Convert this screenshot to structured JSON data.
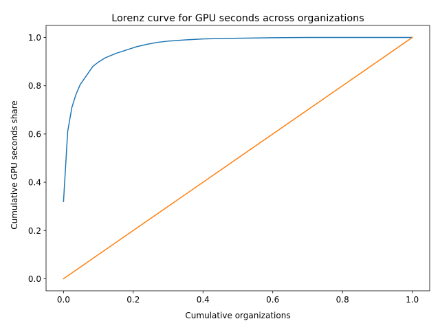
{
  "chart_data": {
    "type": "line",
    "title": "Lorenz curve for GPU seconds across organizations",
    "xlabel": "Cumulative organizations",
    "ylabel": "Cumulative GPU seconds share",
    "xlim": [
      -0.05,
      1.05
    ],
    "ylim": [
      -0.05,
      1.05
    ],
    "xticks": [
      0.0,
      0.2,
      0.4,
      0.6,
      0.8,
      1.0
    ],
    "yticks": [
      0.0,
      0.2,
      0.4,
      0.6,
      0.8,
      1.0
    ],
    "xtick_labels": [
      "0.0",
      "0.2",
      "0.4",
      "0.6",
      "0.8",
      "1.0"
    ],
    "ytick_labels": [
      "0.0",
      "0.2",
      "0.4",
      "0.6",
      "0.8",
      "1.0"
    ],
    "grid": false,
    "legend": false,
    "series": [
      {
        "color": "#1f77b4",
        "x": [
          0.0,
          0.012,
          0.024,
          0.036,
          0.048,
          0.06,
          0.072,
          0.084,
          0.1,
          0.12,
          0.15,
          0.18,
          0.21,
          0.24,
          0.27,
          0.3,
          0.35,
          0.4,
          0.45,
          0.5,
          0.6,
          0.7,
          0.8,
          0.9,
          1.0
        ],
        "y": [
          0.32,
          0.61,
          0.71,
          0.765,
          0.805,
          0.83,
          0.855,
          0.88,
          0.898,
          0.916,
          0.934,
          0.948,
          0.962,
          0.972,
          0.98,
          0.985,
          0.99,
          0.994,
          0.996,
          0.997,
          0.999,
          1.0,
          1.0,
          1.0,
          1.0
        ]
      },
      {
        "color": "#ff7f0e",
        "x": [
          0.0,
          1.0
        ],
        "y": [
          0.0,
          1.0
        ]
      }
    ]
  }
}
